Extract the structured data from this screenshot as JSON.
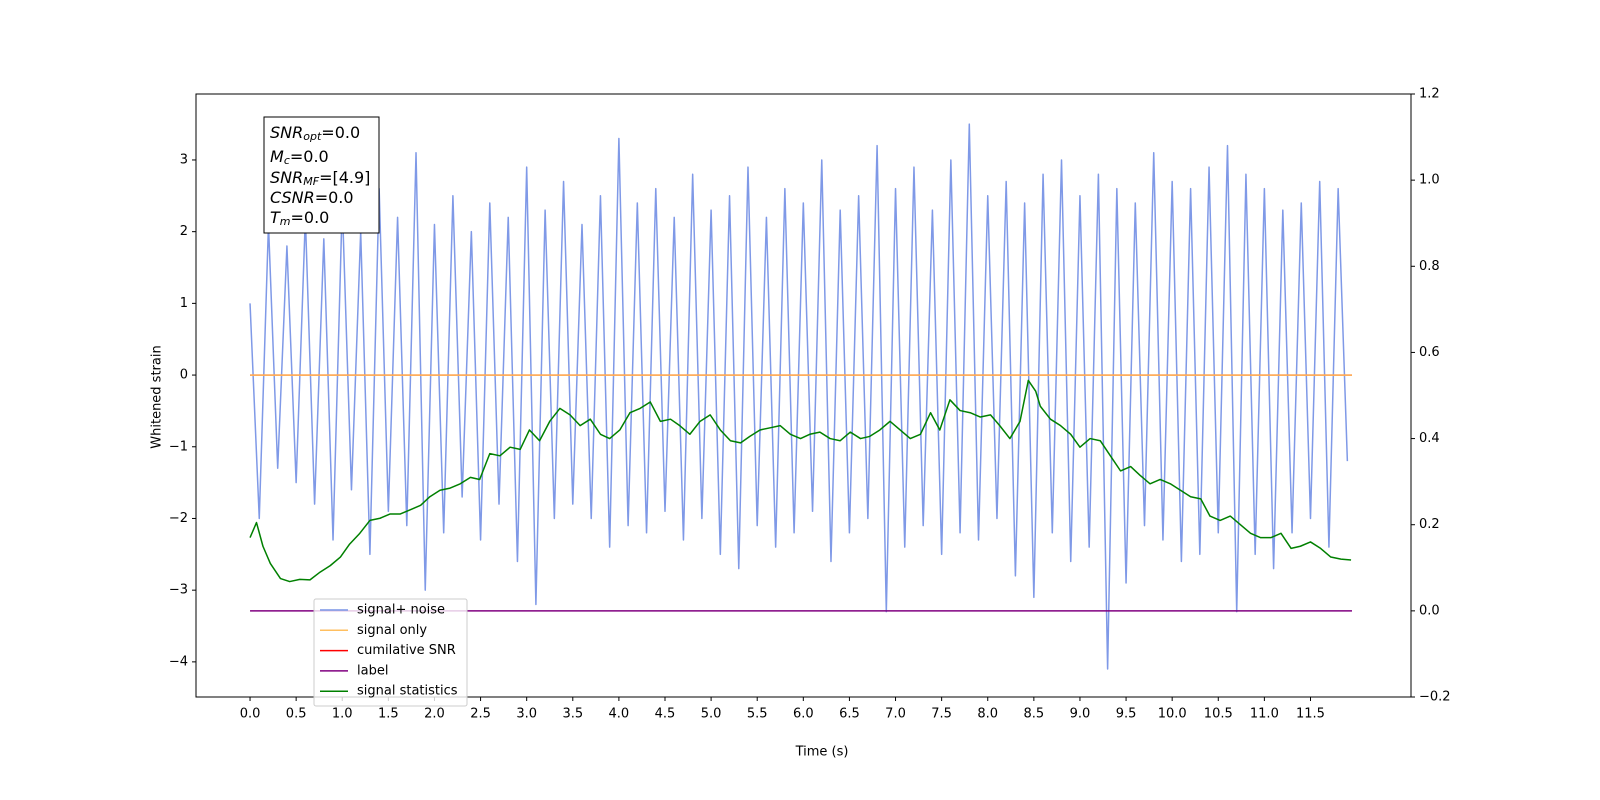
{
  "chart_data": {
    "type": "line",
    "xlabel": "Time (s)",
    "ylabel": "Whitened strain",
    "xlim": [
      -0.586,
      12.59
    ],
    "ylim": [
      -4.49,
      3.92
    ],
    "y2lim": [
      -0.2,
      1.2
    ],
    "xticks": [
      {
        "value": 0,
        "label": "0.0"
      },
      0.5,
      {
        "value": 1,
        "label": "1.0"
      },
      1.5,
      {
        "value": 2,
        "label": "2.0"
      },
      2.5,
      {
        "value": 3,
        "label": "3.0"
      },
      3.5,
      {
        "value": 4,
        "label": "4.0"
      },
      4.5,
      {
        "value": 5,
        "label": "5.0"
      },
      5.5,
      {
        "value": 6,
        "label": "6.0"
      },
      6.5,
      {
        "value": 7,
        "label": "7.0"
      },
      7.5,
      {
        "value": 8,
        "label": "8.0"
      },
      8.5,
      {
        "value": 9,
        "label": "9.0"
      },
      9.5,
      {
        "value": 10,
        "label": "10.0"
      },
      10.5,
      {
        "value": 11,
        "label": "11.0"
      },
      11.5
    ],
    "yticks": [
      {
        "value": -4,
        "label": "−4"
      },
      {
        "value": -3,
        "label": "−3"
      },
      {
        "value": -2,
        "label": "−2"
      },
      {
        "value": -1,
        "label": "−1"
      },
      0,
      1,
      2,
      3
    ],
    "y2ticks": [
      {
        "value": -0.2,
        "label": "−0.2"
      },
      {
        "value": 0,
        "label": "0.0"
      },
      0.2,
      0.4,
      0.6,
      0.8,
      {
        "value": 1,
        "label": "1.0"
      },
      1.2
    ],
    "legend": "lower left",
    "annotation": [
      {
        "text": "SNR",
        "sub": "opt",
        "rest": "=0.0"
      },
      {
        "text": "M",
        "sub": "c",
        "rest": "=0.0"
      },
      {
        "text": "SNR",
        "sub": "MF",
        "rest": "=[4.9]"
      },
      {
        "text": "CSNR",
        "rest": "=0.0"
      },
      {
        "text": "T",
        "sub": "m",
        "rest": "=0.0"
      }
    ],
    "series": [
      {
        "name": "signal+ noise",
        "color": "#7893e6",
        "x": [
          0.0,
          0.1,
          0.2,
          0.3,
          0.4,
          0.5,
          0.6,
          0.7,
          0.8,
          0.9,
          1.0,
          1.1,
          1.2,
          1.3,
          1.4,
          1.5,
          1.6,
          1.7,
          1.8,
          1.9,
          2.0,
          2.1,
          2.2,
          2.3,
          2.4,
          2.5,
          2.6,
          2.7,
          2.8,
          2.9,
          3.0,
          3.1,
          3.2,
          3.3,
          3.4,
          3.5,
          3.6,
          3.7,
          3.8,
          3.9,
          4.0,
          4.1,
          4.2,
          4.3,
          4.4,
          4.5,
          4.6,
          4.7,
          4.8,
          4.9,
          5.0,
          5.1,
          5.2,
          5.3,
          5.4,
          5.5,
          5.6,
          5.7,
          5.8,
          5.9,
          6.0,
          6.1,
          6.2,
          6.3,
          6.4,
          6.5,
          6.6,
          6.7,
          6.8,
          6.9,
          7.0,
          7.1,
          7.2,
          7.3,
          7.4,
          7.5,
          7.6,
          7.7,
          7.8,
          7.9,
          8.0,
          8.1,
          8.2,
          8.3,
          8.4,
          8.5,
          8.6,
          8.7,
          8.8,
          8.9,
          9.0,
          9.1,
          9.2,
          9.3,
          9.4,
          9.5,
          9.6,
          9.7,
          9.8,
          9.9,
          10.0,
          10.1,
          10.2,
          10.3,
          10.4,
          10.5,
          10.6,
          10.7,
          10.8,
          10.9,
          11.0,
          11.1,
          11.2,
          11.3,
          11.4,
          11.5,
          11.6,
          11.7,
          11.8,
          11.9
        ],
        "values": [
          1.0,
          -2.0,
          2.1,
          -1.3,
          1.8,
          -1.5,
          2.2,
          -1.8,
          1.9,
          -2.3,
          2.4,
          -1.6,
          2.0,
          -2.5,
          2.6,
          -1.9,
          2.2,
          -2.1,
          3.1,
          -3.0,
          2.1,
          -2.2,
          2.5,
          -1.7,
          2.0,
          -2.3,
          2.4,
          -1.8,
          2.2,
          -2.6,
          2.9,
          -3.2,
          2.3,
          -2.0,
          2.7,
          -1.8,
          2.1,
          -2.0,
          2.5,
          -2.4,
          3.3,
          -2.1,
          2.4,
          -2.2,
          2.6,
          -1.9,
          2.2,
          -2.3,
          2.8,
          -2.0,
          2.3,
          -2.5,
          2.5,
          -2.7,
          2.9,
          -2.1,
          2.2,
          -2.4,
          2.6,
          -2.2,
          2.4,
          -1.9,
          3.0,
          -2.6,
          2.3,
          -2.2,
          2.5,
          -2.0,
          3.2,
          -3.3,
          2.6,
          -2.4,
          2.9,
          -2.1,
          2.3,
          -2.5,
          3.0,
          -2.2,
          3.5,
          -2.3,
          2.5,
          -2.0,
          2.7,
          -2.8,
          2.4,
          -3.1,
          2.8,
          -2.2,
          3.0,
          -2.6,
          2.5,
          -2.4,
          2.8,
          -4.1,
          2.6,
          -2.9,
          2.4,
          -2.1,
          3.1,
          -2.3,
          2.7,
          -2.6,
          2.6,
          -2.5,
          2.9,
          -2.2,
          3.2,
          -3.3,
          2.8,
          -2.5,
          2.6,
          -2.7,
          2.3,
          -2.2,
          2.4,
          -2.0,
          2.7,
          -2.4,
          2.6,
          -1.2
        ]
      },
      {
        "name": "signal only",
        "color": "#ffbf60",
        "x": [
          0,
          11.95
        ],
        "values": [
          0,
          0
        ]
      },
      {
        "name": "cumilative SNR",
        "color": "#ff0000",
        "x": [
          0,
          11.95
        ],
        "values": [
          0,
          0
        ]
      },
      {
        "name": "label",
        "color": "#800080",
        "axis": "y2",
        "x": [
          0,
          11.95
        ],
        "values": [
          0,
          0
        ]
      },
      {
        "name": "signal statistics",
        "color": "#008000",
        "axis": "y2",
        "x": [
          0.0,
          0.07,
          0.14,
          0.22,
          0.33,
          0.43,
          0.54,
          0.65,
          0.76,
          0.87,
          0.98,
          1.08,
          1.19,
          1.3,
          1.41,
          1.52,
          1.63,
          1.74,
          1.85,
          1.95,
          2.06,
          2.17,
          2.28,
          2.39,
          2.49,
          2.6,
          2.71,
          2.82,
          2.93,
          3.03,
          3.14,
          3.25,
          3.36,
          3.47,
          3.58,
          3.69,
          3.8,
          3.9,
          4.01,
          4.12,
          4.23,
          4.34,
          4.45,
          4.56,
          4.66,
          4.77,
          4.88,
          4.99,
          5.1,
          5.21,
          5.32,
          5.42,
          5.53,
          5.64,
          5.75,
          5.86,
          5.97,
          6.07,
          6.18,
          6.29,
          6.4,
          6.51,
          6.62,
          6.72,
          6.83,
          6.94,
          7.05,
          7.16,
          7.27,
          7.38,
          7.48,
          7.59,
          7.7,
          7.81,
          7.92,
          8.03,
          8.13,
          8.24,
          8.35,
          8.44,
          8.52,
          8.57,
          8.68,
          8.79,
          8.9,
          9.0,
          9.11,
          9.22,
          9.33,
          9.44,
          9.55,
          9.65,
          9.76,
          9.87,
          9.98,
          10.09,
          10.2,
          10.31,
          10.41,
          10.52,
          10.63,
          10.74,
          10.85,
          10.96,
          11.07,
          11.18,
          11.29,
          11.39,
          11.5,
          11.61,
          11.72,
          11.83,
          11.94
        ],
        "values": [
          0.17,
          0.205,
          0.15,
          0.11,
          0.075,
          0.068,
          0.073,
          0.072,
          0.09,
          0.105,
          0.125,
          0.155,
          0.18,
          0.21,
          0.215,
          0.225,
          0.225,
          0.235,
          0.245,
          0.265,
          0.28,
          0.285,
          0.295,
          0.31,
          0.305,
          0.365,
          0.36,
          0.38,
          0.375,
          0.42,
          0.395,
          0.44,
          0.47,
          0.455,
          0.43,
          0.445,
          0.41,
          0.4,
          0.42,
          0.46,
          0.47,
          0.485,
          0.44,
          0.445,
          0.43,
          0.41,
          0.44,
          0.455,
          0.42,
          0.395,
          0.39,
          0.405,
          0.42,
          0.425,
          0.43,
          0.41,
          0.4,
          0.41,
          0.415,
          0.4,
          0.395,
          0.415,
          0.4,
          0.405,
          0.42,
          0.44,
          0.42,
          0.4,
          0.41,
          0.46,
          0.42,
          0.49,
          0.465,
          0.46,
          0.45,
          0.455,
          0.43,
          0.4,
          0.44,
          0.535,
          0.51,
          0.475,
          0.445,
          0.43,
          0.41,
          0.38,
          0.4,
          0.395,
          0.36,
          0.325,
          0.335,
          0.315,
          0.295,
          0.305,
          0.295,
          0.28,
          0.265,
          0.26,
          0.22,
          0.21,
          0.22,
          0.2,
          0.18,
          0.17,
          0.17,
          0.18,
          0.145,
          0.15,
          0.16,
          0.145,
          0.125,
          0.12,
          0.118
        ]
      }
    ]
  }
}
